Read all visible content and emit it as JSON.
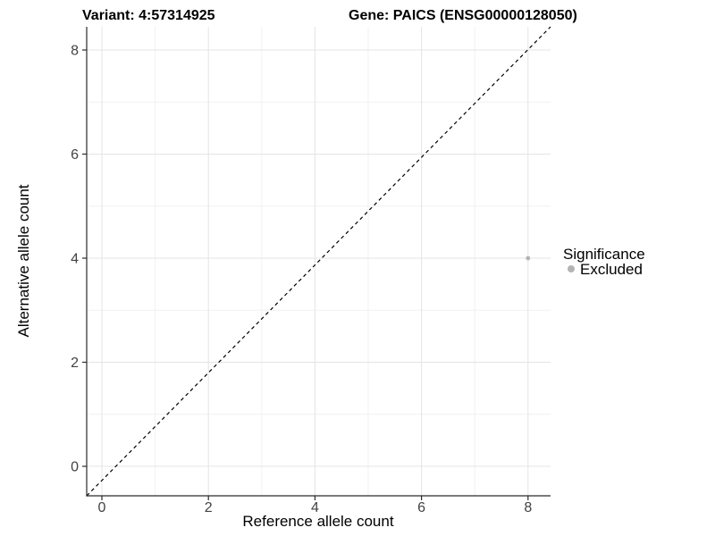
{
  "header": {
    "title_left": "Variant: 4:57314925",
    "title_right": "Gene: PAICS (ENSG00000128050)"
  },
  "axes": {
    "x_label": "Reference allele count",
    "y_label": "Alternative allele count"
  },
  "legend": {
    "title": "Significance",
    "items": [
      {
        "label": "Excluded",
        "color": "#b3b3b3"
      }
    ]
  },
  "colors": {
    "background": "#ffffff",
    "grid_major": "#e4e4e4",
    "grid_minor": "#f1f1f1",
    "axis_line": "#2b2b2b",
    "tick_mark": "#2b2b2b",
    "tick_label": "#424242",
    "point": "#b3b3b3",
    "identity_line": "#000000"
  },
  "chart_data": {
    "type": "scatter",
    "title": "Variant: 4:57314925 — Gene: PAICS (ENSG00000128050)",
    "xlabel": "Reference allele count",
    "ylabel": "Alternative allele count",
    "x_ticks": [
      0,
      2,
      4,
      6,
      8
    ],
    "y_ticks": [
      0,
      2,
      4,
      6,
      8
    ],
    "x_minor_ticks": [
      1,
      3,
      5,
      7
    ],
    "y_minor_ticks": [
      1,
      3,
      5,
      7
    ],
    "xlim": [
      -0.29,
      8.42
    ],
    "ylim": [
      -0.57,
      8.45
    ],
    "grid": "major and minor, light gray on white",
    "legend_position": "right",
    "series": [
      {
        "name": "Excluded",
        "color": "#b3b3b3",
        "points": [
          {
            "x": 8,
            "y": 4
          }
        ]
      }
    ],
    "annotations": [
      {
        "type": "reference_line",
        "equation": "y = x",
        "style": "dashed",
        "color": "#000000"
      }
    ]
  }
}
